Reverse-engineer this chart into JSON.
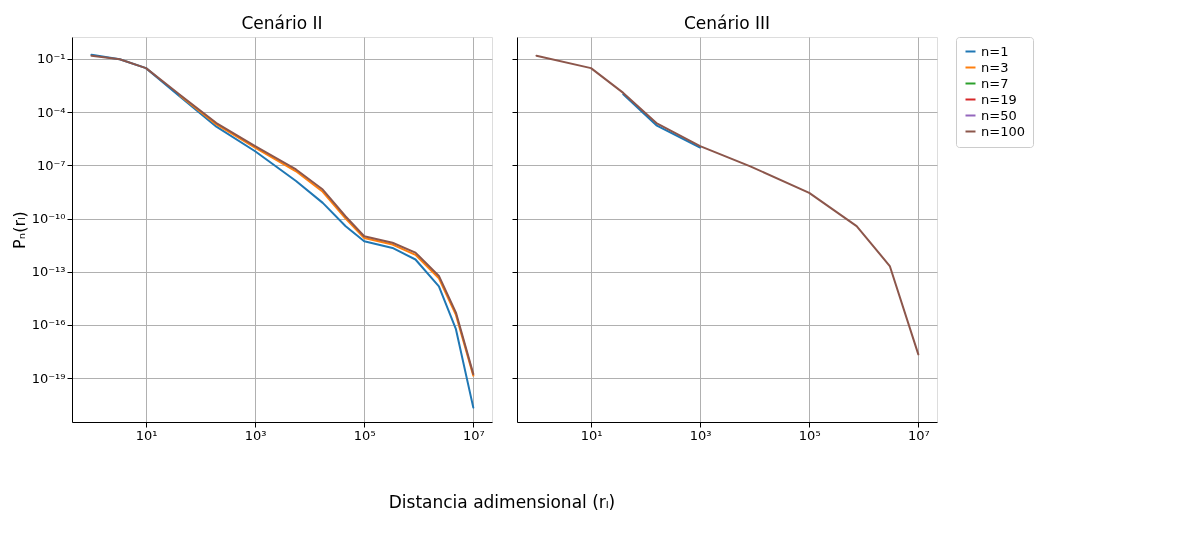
{
  "chart_data": [
    {
      "type": "line",
      "title": "Cenário II",
      "ylabel": "Pₙ(rₗ)",
      "xlabel": "Distancia adimensional (rₗ)",
      "log": "xy",
      "grid": true,
      "legend": "right",
      "line_style": "solid",
      "marker": "none",
      "xlim": [
        0.44,
        22000000.0
      ],
      "ylim": [
        3.4e-22,
        1.7
      ],
      "xticks": [
        {
          "value": 10,
          "label": "10¹"
        },
        {
          "value": 1000,
          "label": "10³"
        },
        {
          "value": 100000,
          "label": "10⁵"
        },
        {
          "value": 10000000,
          "label": "10⁷"
        }
      ],
      "yticks": [
        {
          "value": 0.1,
          "label": "10⁻¹"
        },
        {
          "value": 0.0001,
          "label": "10⁻⁴"
        },
        {
          "value": 1e-07,
          "label": "10⁻⁷"
        },
        {
          "value": 1e-10,
          "label": "10⁻¹⁰"
        },
        {
          "value": 1e-13,
          "label": "10⁻¹³"
        },
        {
          "value": 1e-16,
          "label": "10⁻¹⁶"
        },
        {
          "value": 1e-19,
          "label": "10⁻¹⁹"
        }
      ],
      "x": [
        1,
        3.3,
        10,
        41.7,
        195,
        1000,
        5623,
        17378,
        45709,
        100000,
        330000,
        870000,
        2340000,
        4800000,
        10000000
      ],
      "series": [
        {
          "name": "n=1",
          "color": "#1f77b4",
          "values": [
            0.17,
            0.095,
            0.03,
            0.00076,
            1.5e-05,
            6.2e-07,
            1.3e-08,
            7.6e-10,
            3.7e-11,
            5.2e-12,
            2.2e-12,
            4.9e-13,
            1.5e-14,
            5.8e-17,
            2.2e-21
          ]
        },
        {
          "name": "n=3",
          "color": "#ff7f0e",
          "values": [
            null,
            null,
            null,
            0.00085,
            2e-05,
            1e-06,
            4.6e-08,
            3.2e-09,
            1e-10,
            8e-12,
            3.4e-12,
            9e-13,
            4.3e-14,
            3.7e-16,
            1.4e-19
          ]
        },
        {
          "name": "n=7",
          "color": "#2ca02c",
          "values": [
            null,
            null,
            null,
            null,
            null,
            null,
            null,
            null,
            null,
            null,
            null,
            null,
            null,
            null,
            null
          ]
        },
        {
          "name": "n=19",
          "color": "#d62728",
          "values": [
            null,
            null,
            null,
            null,
            null,
            null,
            null,
            null,
            null,
            null,
            null,
            null,
            null,
            null,
            null
          ]
        },
        {
          "name": "n=50",
          "color": "#9467bd",
          "values": [
            null,
            null,
            null,
            null,
            null,
            null,
            null,
            null,
            null,
            null,
            null,
            null,
            null,
            null,
            null
          ]
        },
        {
          "name": "n=100",
          "color": "#8c564b",
          "values": [
            0.15,
            0.095,
            0.03,
            0.00095,
            2.4e-05,
            1.2e-06,
            5.8e-08,
            4.3e-09,
            1.3e-10,
            1e-11,
            4.3e-12,
            1.2e-12,
            5.8e-14,
            5e-16,
            1.7e-19
          ]
        }
      ]
    },
    {
      "type": "line",
      "title": "Cenário III",
      "log": "xy",
      "grid": true,
      "legend": "right",
      "line_style": "solid",
      "marker": "none",
      "tick_labels": "x",
      "xlim": [
        0.44,
        22000000.0
      ],
      "ylim": [
        3.4e-22,
        1.7
      ],
      "xticks": [
        {
          "value": 10,
          "label": "10¹"
        },
        {
          "value": 1000,
          "label": "10³"
        },
        {
          "value": 100000,
          "label": "10⁵"
        },
        {
          "value": 10000000,
          "label": "10⁷"
        }
      ],
      "yticks": [
        {
          "value": 0.1,
          "label": null
        },
        {
          "value": 0.0001,
          "label": null
        },
        {
          "value": 1e-07,
          "label": null
        },
        {
          "value": 1e-10,
          "label": null
        },
        {
          "value": 1e-13,
          "label": null
        },
        {
          "value": 1e-16,
          "label": null
        },
        {
          "value": 1e-19,
          "label": null
        }
      ],
      "x": [
        1,
        10,
        39,
        158,
        1000,
        8318,
        100000,
        740000,
        3000000,
        10000000
      ],
      "series": [
        {
          "name": "n=1",
          "color": "#1f77b4",
          "values": [
            null,
            null,
            0.001,
            1.8e-05,
            1e-06,
            null,
            null,
            null,
            null,
            null
          ]
        },
        {
          "name": "n=100",
          "color": "#8c564b",
          "values": [
            0.15,
            0.03,
            0.0012,
            2.4e-05,
            1.2e-06,
            8.7e-08,
            2.8e-09,
            3.7e-11,
            2.1e-13,
            2.2e-18
          ]
        }
      ]
    }
  ]
}
